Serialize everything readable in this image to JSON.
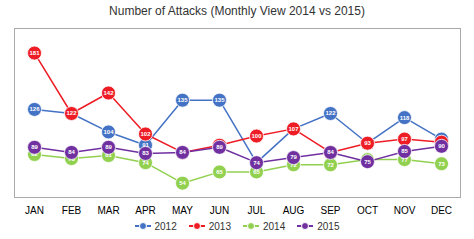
{
  "chart_data": {
    "type": "line",
    "title": "Number of Attacks (Monthly View 2014 vs 2015)",
    "categories": [
      "JAN",
      "FEB",
      "MAR",
      "APR",
      "MAY",
      "JUN",
      "JUL",
      "AUG",
      "SEP",
      "OCT",
      "NOV",
      "DEC"
    ],
    "series": [
      {
        "name": "2012",
        "color": "#4472C4",
        "values": [
          126,
          122,
          104,
          91,
          135,
          135,
          74,
          107,
          122,
          93,
          118,
          97
        ]
      },
      {
        "name": "2013",
        "color": "#EE1C25",
        "values": [
          181,
          122,
          142,
          102,
          84,
          91,
          100,
          107,
          84,
          93,
          97,
          94
        ]
      },
      {
        "name": "2014",
        "color": "#92D050",
        "values": [
          82,
          78,
          81,
          74,
          54,
          65,
          65,
          72,
          72,
          77,
          77,
          73
        ]
      },
      {
        "name": "2015",
        "color": "#7030A0",
        "values": [
          89,
          84,
          89,
          83,
          84,
          89,
          74,
          79,
          84,
          75,
          85,
          90
        ]
      }
    ],
    "ylim": [
      40,
      205
    ],
    "grid": false,
    "legend": "bottom",
    "data_labels": true,
    "tick_labels": "x",
    "marker": "circle"
  }
}
